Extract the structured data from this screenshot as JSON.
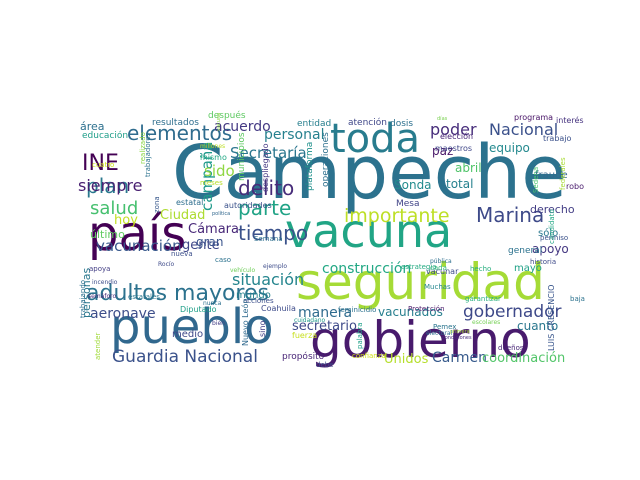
{
  "words": [
    {
      "text": "Campeche",
      "color": "#2c728e"
    },
    {
      "text": "vacuna",
      "color": "#21a585"
    },
    {
      "text": "seguridad",
      "color": "#a5db36"
    },
    {
      "text": "gobierno",
      "color": "#481a6c"
    },
    {
      "text": "pueblo",
      "color": "#31688e"
    },
    {
      "text": "país",
      "color": "#440154"
    },
    {
      "text": "toda",
      "color": "#287c8e"
    },
    {
      "text": "adultos mayores",
      "color": "#2c728e"
    },
    {
      "text": "Guardia Nacional",
      "color": "#3b528b"
    },
    {
      "text": "importante",
      "color": "#bddf26"
    },
    {
      "text": "elementos",
      "color": "#2f6c8e"
    },
    {
      "text": "Marina",
      "color": "#3e4a89"
    },
    {
      "text": "plan",
      "color": "#2a788e"
    },
    {
      "text": "INE",
      "color": "#440154"
    },
    {
      "text": "tiempo",
      "color": "#3b528b"
    },
    {
      "text": "parte",
      "color": "#20a386"
    },
    {
      "text": "delito",
      "color": "#472c7a"
    },
    {
      "text": "salud",
      "color": "#46c06f"
    },
    {
      "text": "gobernador",
      "color": "#3e4989"
    },
    {
      "text": "Nacional",
      "color": "#3b518b"
    },
    {
      "text": "poder",
      "color": "#472d7b"
    },
    {
      "text": "siempre",
      "color": "#481f70"
    },
    {
      "text": "situación",
      "color": "#25858e"
    },
    {
      "text": "Secretaría",
      "color": "#2a768e"
    },
    {
      "text": "personal",
      "color": "#26818e"
    },
    {
      "text": "vacunación",
      "color": "#38588c"
    },
    {
      "text": "construcción",
      "color": "#22a884"
    },
    {
      "text": "Carmen",
      "color": "#375a8c"
    },
    {
      "text": "Unidos",
      "color": "#b5de2b"
    },
    {
      "text": "coordinación",
      "color": "#52c569"
    },
    {
      "text": "aeronave",
      "color": "#3d4e8a"
    },
    {
      "text": "manera",
      "color": "#2f6b8e"
    },
    {
      "text": "acuerdo",
      "color": "#443983"
    },
    {
      "text": "campaña",
      "color": "#1f9a8a"
    },
    {
      "text": "sido",
      "color": "#90d743"
    },
    {
      "text": "Ciudad",
      "color": "#addc30"
    },
    {
      "text": "hoy",
      "color": "#c2df23"
    },
    {
      "text": "gente",
      "color": "#3f4788"
    },
    {
      "text": "Cámara",
      "color": "#482878"
    },
    {
      "text": "gran",
      "color": "#3a548c"
    },
    {
      "text": "secretario",
      "color": "#3e4a89"
    },
    {
      "text": "vacunados",
      "color": "#277f8e"
    },
    {
      "text": "cuanto",
      "color": "#2a778e"
    },
    {
      "text": "apoyo",
      "color": "#453882"
    },
    {
      "text": "total",
      "color": "#26818e"
    },
    {
      "text": "Sonda",
      "color": "#228b8d"
    },
    {
      "text": "equipo",
      "color": "#23898e"
    },
    {
      "text": "paz",
      "color": "#481668"
    },
    {
      "text": "abril",
      "color": "#50c46a"
    },
    {
      "text": "derecho",
      "color": "#433e85"
    },
    {
      "text": "sólo",
      "color": "#2a788e"
    },
    {
      "text": "mayo",
      "color": "#1fa187"
    },
    {
      "text": "general",
      "color": "#2c728e"
    },
    {
      "text": "último",
      "color": "#60ca60"
    },
    {
      "text": "personas",
      "color": "#2a788e"
    },
    {
      "text": "medio",
      "color": "#3e4989"
    },
    {
      "text": "mundo",
      "color": "#26828e"
    },
    {
      "text": "propósito",
      "color": "#482576"
    },
    {
      "text": "área",
      "color": "#2d708e"
    },
    {
      "text": "educación",
      "color": "#1f9e89"
    },
    {
      "text": "resultados",
      "color": "#2e6e8e"
    },
    {
      "text": "después",
      "color": "#5ec962"
    },
    {
      "text": "entidad",
      "color": "#277f8e"
    },
    {
      "text": "atención",
      "color": "#3f4788"
    },
    {
      "text": "dosis",
      "color": "#2d708e"
    },
    {
      "text": "días",
      "color": "#7ad151"
    },
    {
      "text": "elección",
      "color": "#482576"
    },
    {
      "text": "programa",
      "color": "#481467"
    },
    {
      "text": "interés",
      "color": "#46337f"
    },
    {
      "text": "trabajo",
      "color": "#3b518b"
    },
    {
      "text": "maestros",
      "color": "#3f4788"
    },
    {
      "text": "fraude",
      "color": "#31688e"
    },
    {
      "text": "Sedena",
      "color": "#48c16e"
    },
    {
      "text": "federales",
      "color": "#a8db34"
    },
    {
      "text": "robo",
      "color": "#481a6c"
    },
    {
      "text": "Mesa",
      "color": "#414487"
    },
    {
      "text": "plataforma",
      "color": "#21918c"
    },
    {
      "text": "operaciones",
      "color": "#2d708e"
    },
    {
      "text": "despliegado",
      "color": "#453882"
    },
    {
      "text": "municipios",
      "color": "#5ec962"
    },
    {
      "text": "millones",
      "color": "#bddf26"
    },
    {
      "text": "mismo",
      "color": "#22a884"
    },
    {
      "text": "meses",
      "color": "#b8de29"
    },
    {
      "text": "estatal",
      "color": "#2e6e8e"
    },
    {
      "text": "autoridades",
      "color": "#3b528b"
    },
    {
      "text": "política",
      "color": "#30678d"
    },
    {
      "text": "Semana",
      "color": "#2e6f8e"
    },
    {
      "text": "nueva",
      "color": "#3c4f8a"
    },
    {
      "text": "apoya",
      "color": "#433e85"
    },
    {
      "text": "ejemplo",
      "color": "#3e4c8a"
    },
    {
      "text": "vehículo",
      "color": "#6ece58"
    },
    {
      "text": "incendio",
      "color": "#3d4d8a"
    },
    {
      "text": "semáforo",
      "color": "#482979"
    },
    {
      "text": "estatales",
      "color": "#2a768e"
    },
    {
      "text": "Diputado",
      "color": "#1f9f88"
    },
    {
      "text": "acciones",
      "color": "#3c4f8a"
    },
    {
      "text": "Nuevo León",
      "color": "#306a8e"
    },
    {
      "text": "Coahuila",
      "color": "#3e4c8a"
    },
    {
      "text": "sino",
      "color": "#424086"
    },
    {
      "text": "cuidadano",
      "color": "#1f9a8a"
    },
    {
      "text": "fuerza",
      "color": "#c8e020"
    },
    {
      "text": "feminicidio",
      "color": "#2c718e"
    },
    {
      "text": "Protección",
      "color": "#481769"
    },
    {
      "text": "Pemex",
      "color": "#2b758e"
    },
    {
      "text": "hecho",
      "color": "#29af7f"
    },
    {
      "text": "vacunar",
      "color": "#3e4c8a"
    },
    {
      "text": "cada",
      "color": "#35b779"
    },
    {
      "text": "pública",
      "color": "#2e6f8e"
    },
    {
      "text": "Muchas",
      "color": "#24868e"
    },
    {
      "text": "garantizar",
      "color": "#29af7f"
    },
    {
      "text": "permiso",
      "color": "#3b528b"
    },
    {
      "text": "historia",
      "color": "#3e4a89"
    },
    {
      "text": "candidato",
      "color": "#22a785"
    },
    {
      "text": "baja",
      "color": "#2c728e"
    },
    {
      "text": "estrategia",
      "color": "#25ab82"
    },
    {
      "text": "LUIS CRESENCIO",
      "color": "#39568c"
    },
    {
      "text": "trabajando",
      "color": "#2d708e"
    },
    {
      "text": "atender",
      "color": "#a0da39"
    },
    {
      "text": "confianza",
      "color": "#d0e11c"
    },
    {
      "text": "debe",
      "color": "#3e4989"
    },
    {
      "text": "dueños",
      "color": "#482576"
    },
    {
      "text": "condiciones",
      "color": "#472c7a"
    },
    {
      "text": "palabra",
      "color": "#1fa088"
    },
    {
      "text": "nunca",
      "color": "#2d708e"
    },
    {
      "text": "bien",
      "color": "#433e85"
    },
    {
      "text": "realizado",
      "color": "#8bd646"
    },
    {
      "text": "cuatro",
      "color": "#d2e21b"
    },
    {
      "text": "trabajadores",
      "color": "#2c728e"
    },
    {
      "text": "zona",
      "color": "#38588c"
    },
    {
      "text": "Rocío",
      "color": "#3e4a89"
    },
    {
      "text": "vacuna",
      "color": "#8bd646"
    },
    {
      "text": "primera",
      "color": "#a2da37"
    },
    {
      "text": "escolares",
      "color": "#75d054"
    },
    {
      "text": "electoral",
      "color": "#2e6e8e"
    },
    {
      "text": "caso",
      "color": "#2c728e"
    }
  ]
}
